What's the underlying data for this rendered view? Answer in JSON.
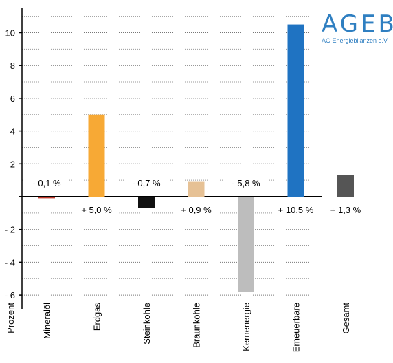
{
  "logo": {
    "wordmark": "AGEB",
    "subtitle": "AG Energiebilanzen e.V."
  },
  "chart_data": {
    "type": "bar",
    "ylabel": "Prozent",
    "ylim": [
      -6.5,
      11.5
    ],
    "yticks": [
      10,
      8,
      6,
      4,
      2,
      -2,
      -4,
      -6
    ],
    "ytick_labels": [
      "10",
      "8",
      "6",
      "4",
      "2",
      "- 2",
      "- 4",
      "- 6"
    ],
    "grid": true,
    "categories": [
      "Mineralöl",
      "Erdgas",
      "Steinkohle",
      "Braunkohle",
      "Kernenergie",
      "Erneuerbare",
      "Gesamt"
    ],
    "values": [
      -0.1,
      5.0,
      -0.7,
      0.9,
      -5.8,
      10.5,
      1.3
    ],
    "value_labels": [
      "- 0,1 %",
      "+ 5,0 %",
      "- 0,7 %",
      "+ 0,9 %",
      "- 5,8 %",
      "+ 10,5 %",
      "+ 1,3 %"
    ],
    "colors": [
      "#c0392b",
      "#f7a935",
      "#111111",
      "#e6c195",
      "#bdbdbd",
      "#1f73c2",
      "#555555"
    ]
  }
}
